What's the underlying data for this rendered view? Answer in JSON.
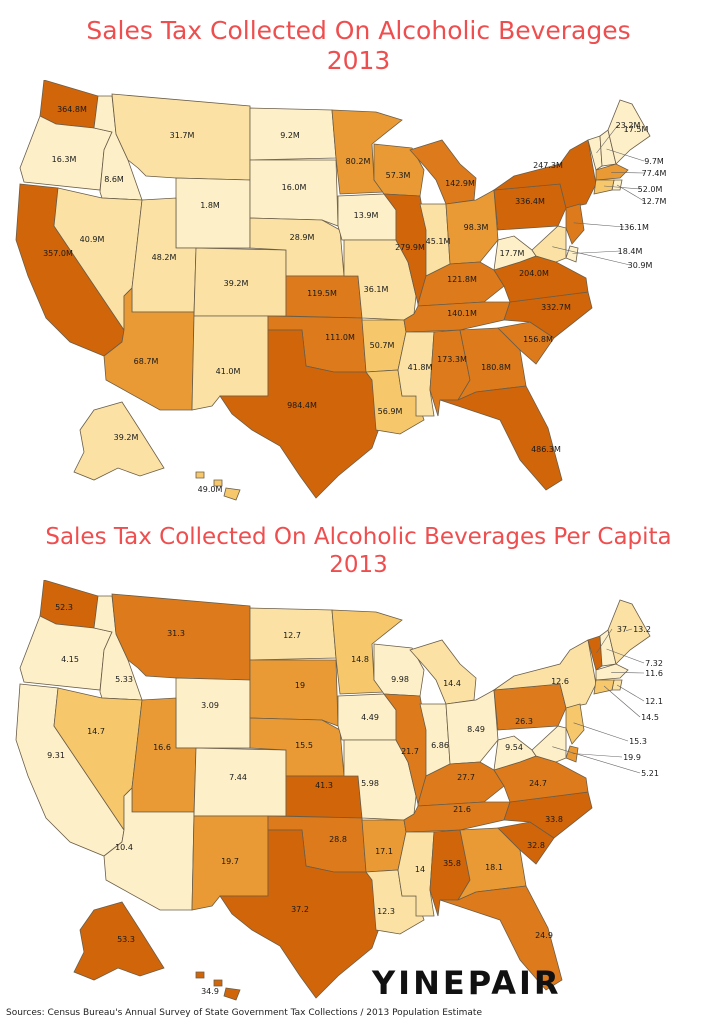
{
  "map1": {
    "title": "Sales Tax Collected On Alcoholic Beverages",
    "year": "2013",
    "labels": {
      "WA": "364.8M",
      "OR": "16.3M",
      "CA": "357.0M",
      "ID": "8.6M",
      "NV": "40.9M",
      "MT": "31.7M",
      "WY": "1.8M",
      "UT": "48.2M",
      "AZ": "68.7M",
      "CO": "39.2M",
      "NM": "41.0M",
      "ND": "9.2M",
      "SD": "16.0M",
      "NE": "28.9M",
      "KS": "119.5M",
      "OK": "111.0M",
      "TX": "984.4M",
      "MN": "80.2M",
      "IA": "13.9M",
      "MO": "36.1M",
      "AR": "50.7M",
      "LA": "56.9M",
      "WI": "57.3M",
      "IL": "279.9M",
      "MI": "142.9M",
      "IN": "45.1M",
      "OH": "98.3M",
      "KY": "121.8M",
      "TN": "140.1M",
      "MS": "41.8M",
      "AL": "173.3M",
      "GA": "180.8M",
      "FL": "486.3M",
      "SC": "156.8M",
      "NC": "332.7M",
      "VA": "204.0M",
      "WV": "17.7M",
      "PA": "336.4M",
      "NY": "247.3M",
      "VT": "23.2M",
      "NH": "9.7M",
      "ME": "17.5M",
      "MA": "77.4M",
      "RI": "12.7M",
      "CT": "52.0M",
      "NJ": "136.1M",
      "DE": "18.4M",
      "MD": "30.9M",
      "AK": "39.2M",
      "HI": "49.0M"
    }
  },
  "map2": {
    "title": "Sales Tax Collected On Alcoholic Beverages Per Capita",
    "year": "2013",
    "labels": {
      "WA": "52.3",
      "OR": "4.15",
      "CA": "9.31",
      "ID": "5.33",
      "NV": "14.7",
      "MT": "31.3",
      "WY": "3.09",
      "UT": "16.6",
      "AZ": "10.4",
      "CO": "7.44",
      "NM": "19.7",
      "ND": "12.7",
      "SD": "19",
      "NE": "15.5",
      "KS": "41.3",
      "OK": "28.8",
      "TX": "37.2",
      "MN": "14.8",
      "IA": "4.49",
      "MO": "5.98",
      "AR": "17.1",
      "LA": "12.3",
      "WI": "9.98",
      "IL": "21.7",
      "MI": "14.4",
      "IN": "6.86",
      "OH": "8.49",
      "KY": "27.7",
      "TN": "21.6",
      "MS": "14",
      "AL": "35.8",
      "GA": "18.1",
      "FL": "24.9",
      "SC": "32.8",
      "NC": "33.8",
      "VA": "24.7",
      "WV": "9.54",
      "PA": "26.3",
      "NY": "12.6",
      "VT": "37",
      "NH": "7.32",
      "ME": "13.2",
      "MA": "11.6",
      "RI": "12.1",
      "CT": "14.5",
      "NJ": "15.3",
      "DE": "19.9",
      "MD": "5.21",
      "AK": "53.3",
      "HI": "34.9"
    }
  },
  "colors": {
    "c1": "#fdf0c8",
    "c2": "#fbe2a4",
    "c3": "#f6c86b",
    "c4": "#e99a34",
    "c5": "#dd7b1c",
    "c6": "#d1650a",
    "title": "#ef4e4f"
  },
  "map1_fill": {
    "WA": "c6",
    "OR": "c1",
    "CA": "c6",
    "ID": "c1",
    "NV": "c2",
    "MT": "c2",
    "WY": "c1",
    "UT": "c2",
    "AZ": "c4",
    "CO": "c2",
    "NM": "c2",
    "ND": "c1",
    "SD": "c1",
    "NE": "c2",
    "KS": "c5",
    "OK": "c5",
    "TX": "c6",
    "MN": "c4",
    "IA": "c1",
    "MO": "c2",
    "AR": "c3",
    "LA": "c3",
    "WI": "c4",
    "IL": "c6",
    "MI": "c5",
    "IN": "c2",
    "OH": "c4",
    "KY": "c5",
    "TN": "c5",
    "MS": "c2",
    "AL": "c5",
    "GA": "c5",
    "FL": "c6",
    "SC": "c5",
    "NC": "c6",
    "VA": "c6",
    "WV": "c1",
    "PA": "c6",
    "NY": "c6",
    "VT": "c1",
    "NH": "c1",
    "ME": "c1",
    "MA": "c4",
    "RI": "c1",
    "CT": "c3",
    "NJ": "c5",
    "DE": "c1",
    "MD": "c2",
    "AK": "c2",
    "HI": "c3"
  },
  "map2_fill": {
    "WA": "c6",
    "OR": "c1",
    "CA": "c1",
    "ID": "c1",
    "NV": "c3",
    "MT": "c5",
    "WY": "c1",
    "UT": "c4",
    "AZ": "c1",
    "CO": "c1",
    "NM": "c4",
    "ND": "c2",
    "SD": "c4",
    "NE": "c4",
    "KS": "c6",
    "OK": "c5",
    "TX": "c6",
    "MN": "c3",
    "IA": "c1",
    "MO": "c1",
    "AR": "c4",
    "LA": "c2",
    "WI": "c1",
    "IL": "c5",
    "MI": "c2",
    "IN": "c1",
    "OH": "c1",
    "KY": "c5",
    "TN": "c5",
    "MS": "c2",
    "AL": "c6",
    "GA": "c4",
    "FL": "c5",
    "SC": "c6",
    "NC": "c6",
    "VA": "c5",
    "WV": "c1",
    "PA": "c5",
    "NY": "c2",
    "VT": "c6",
    "NH": "c1",
    "ME": "c2",
    "MA": "c1",
    "RI": "c2",
    "CT": "c3",
    "NJ": "c3",
    "DE": "c4",
    "MD": "c1",
    "AK": "c6",
    "HI": "c6"
  },
  "logo": "YINEPAIR",
  "source": "Sources: Census Bureau's Annual Survey of State Government Tax Collections / 2013 Population Estimate"
}
